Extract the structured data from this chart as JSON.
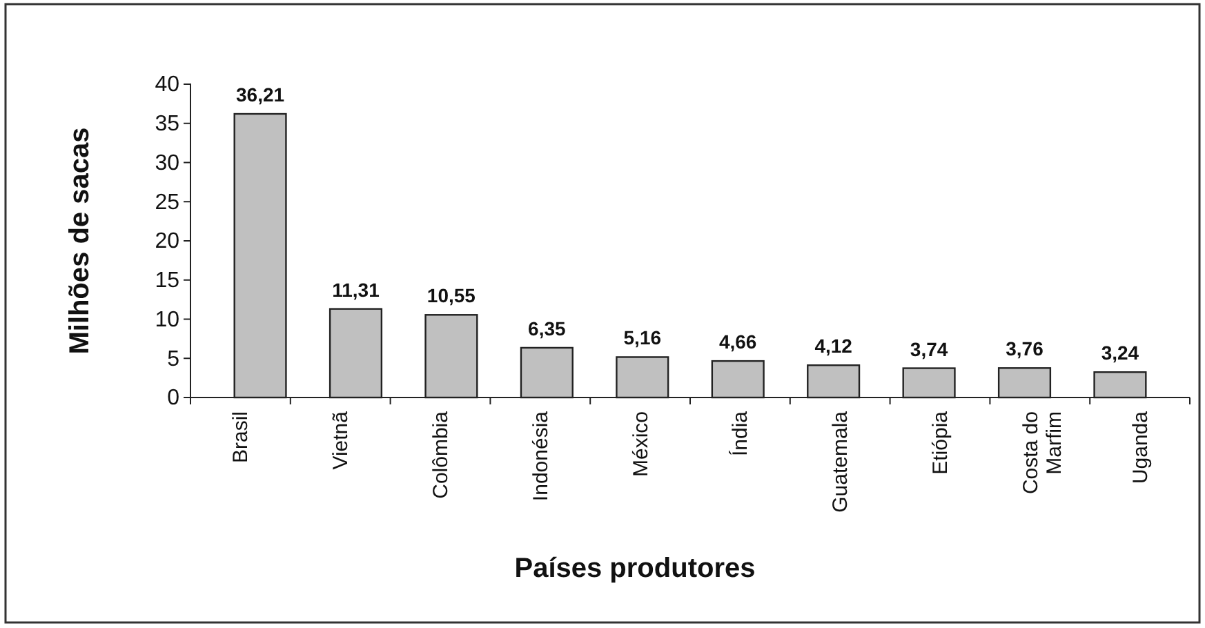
{
  "chart_data": {
    "type": "bar",
    "xlabel": "Países produtores",
    "ylabel": "Milhões de sacas",
    "categories": [
      "Brasil",
      "Vietnã",
      "Colômbia",
      "Indonésia",
      "México",
      "Índia",
      "Guatemala",
      "Etiópia",
      "Costa do Marfim",
      "Uganda"
    ],
    "values": [
      36.21,
      11.31,
      10.55,
      6.35,
      5.16,
      4.66,
      4.12,
      3.74,
      3.76,
      3.24
    ],
    "value_labels": [
      "36,21",
      "11,31",
      "10,55",
      "6,35",
      "5,16",
      "4,66",
      "4,12",
      "3,74",
      "3,76",
      "3,24"
    ],
    "color": "#c0c0c0",
    "ylim": [
      0,
      40
    ],
    "yticks": [
      0,
      5,
      10,
      15,
      20,
      25,
      30,
      35,
      40
    ],
    "grid": false
  }
}
